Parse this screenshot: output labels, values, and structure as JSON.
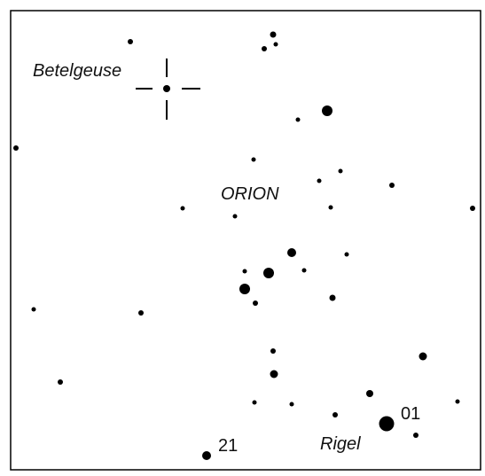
{
  "labels": {
    "betelgeuse": "Betelgeuse",
    "constellation": "ORION",
    "rigel": "Rigel",
    "rigel_number": "01",
    "star_number": "21"
  }
}
